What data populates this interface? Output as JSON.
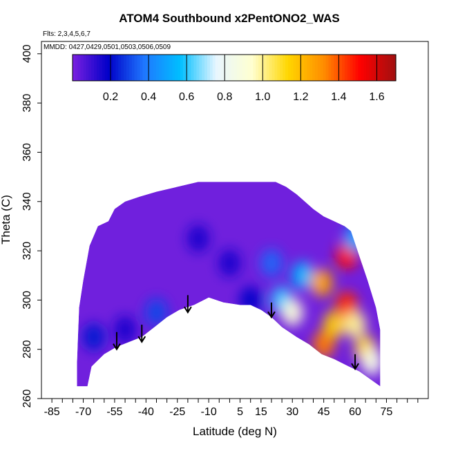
{
  "chart_data": {
    "type": "heatmap",
    "title": "ATOM4 Southbound x2PentONO2_WAS",
    "subtitle": "Flts: 2,3,4,5,6,7",
    "annotation": "MMDD: 0427,0429,0501,0503,0506,0509",
    "xlabel": "Latitude (deg N)",
    "ylabel": "Theta (C)",
    "xlim": [
      -90,
      95
    ],
    "ylim": [
      260,
      405
    ],
    "x_ticks": [
      -85,
      -80,
      -75,
      -70,
      -65,
      -60,
      -55,
      -50,
      -45,
      -40,
      -35,
      -30,
      -25,
      -20,
      -15,
      -10,
      -5,
      0,
      5,
      10,
      15,
      20,
      25,
      30,
      35,
      40,
      45,
      50,
      55,
      60,
      65,
      70,
      75,
      80,
      85,
      90
    ],
    "x_tick_labels": [
      "-85",
      "-70",
      "-55",
      "-40",
      "-25",
      "-10",
      "5",
      "15",
      "30",
      "45",
      "60",
      "75"
    ],
    "x_tick_label_values": [
      -85,
      -70,
      -55,
      -40,
      -25,
      -10,
      5,
      15,
      30,
      45,
      60,
      75
    ],
    "y_ticks": [
      260,
      280,
      300,
      320,
      340,
      360,
      380,
      400
    ],
    "y_tick_labels": [
      "260",
      "280",
      "300",
      "320",
      "340",
      "360",
      "380",
      "400"
    ],
    "grid": false,
    "colorbar": {
      "placement": "top-inside",
      "range": [
        0,
        1.7
      ],
      "tick_values": [
        0.2,
        0.4,
        0.6,
        0.8,
        1.0,
        1.2,
        1.4,
        1.6
      ],
      "tick_labels": [
        "0.2",
        "0.4",
        "0.6",
        "0.8",
        "1.0",
        "1.2",
        "1.4",
        "1.6"
      ],
      "colors": [
        "#7b1fe0",
        "#0000c8",
        "#1f78ff",
        "#00bfff",
        "#e8f6ff",
        "#ffffd0",
        "#ffd600",
        "#ff8c00",
        "#ff0000",
        "#a01010"
      ]
    },
    "coverage": {
      "top_boundary": [
        [
          -73,
          275
        ],
        [
          -72,
          297
        ],
        [
          -70,
          308
        ],
        [
          -67,
          322
        ],
        [
          -63,
          330
        ],
        [
          -58,
          332
        ],
        [
          -55,
          337
        ],
        [
          -50,
          340
        ],
        [
          -43,
          342
        ],
        [
          -35,
          344
        ],
        [
          -25,
          346
        ],
        [
          -15,
          348
        ],
        [
          -5,
          348
        ],
        [
          5,
          348
        ],
        [
          15,
          348
        ],
        [
          22,
          348
        ],
        [
          27,
          346
        ],
        [
          32,
          343
        ],
        [
          36,
          340
        ],
        [
          40,
          337
        ],
        [
          45,
          334
        ],
        [
          50,
          332
        ],
        [
          55,
          330
        ],
        [
          58,
          328
        ],
        [
          62,
          318
        ],
        [
          66,
          308
        ],
        [
          70,
          297
        ],
        [
          72,
          288
        ]
      ],
      "bottom_boundary": [
        [
          -73,
          265
        ],
        [
          -68,
          265
        ],
        [
          -66,
          273
        ],
        [
          -60,
          278
        ],
        [
          -54,
          281
        ],
        [
          -48,
          283
        ],
        [
          -42,
          285
        ],
        [
          -36,
          289
        ],
        [
          -30,
          293
        ],
        [
          -24,
          296
        ],
        [
          -17,
          298
        ],
        [
          -10,
          301
        ],
        [
          -3,
          299
        ],
        [
          5,
          298
        ],
        [
          10,
          298
        ],
        [
          15,
          296
        ],
        [
          20,
          293
        ],
        [
          25,
          289
        ],
        [
          32,
          285
        ],
        [
          38,
          282
        ],
        [
          44,
          278
        ],
        [
          50,
          276
        ],
        [
          57,
          273
        ],
        [
          62,
          271
        ],
        [
          67,
          268
        ],
        [
          72,
          265
        ]
      ]
    },
    "concentration_features": [
      {
        "x": -65,
        "y": 285,
        "value": 0.22
      },
      {
        "x": -50,
        "y": 288,
        "value": 0.15
      },
      {
        "x": -35,
        "y": 295,
        "value": 0.3
      },
      {
        "x": -15,
        "y": 325,
        "value": 0.15
      },
      {
        "x": 0,
        "y": 315,
        "value": 0.15
      },
      {
        "x": 10,
        "y": 300,
        "value": 0.18
      },
      {
        "x": 20,
        "y": 315,
        "value": 0.35
      },
      {
        "x": 25,
        "y": 300,
        "value": 0.6
      },
      {
        "x": 30,
        "y": 295,
        "value": 0.9
      },
      {
        "x": 35,
        "y": 310,
        "value": 0.55
      },
      {
        "x": 44,
        "y": 307,
        "value": 1.25
      },
      {
        "x": 45,
        "y": 282,
        "value": 1.35
      },
      {
        "x": 50,
        "y": 290,
        "value": 1.15
      },
      {
        "x": 56,
        "y": 318,
        "value": 1.5
      },
      {
        "x": 56,
        "y": 298,
        "value": 1.45
      },
      {
        "x": 60,
        "y": 290,
        "value": 1.0
      },
      {
        "x": 65,
        "y": 280,
        "value": 1.1
      },
      {
        "x": 68,
        "y": 275,
        "value": 0.85
      },
      {
        "x": 60,
        "y": 325,
        "value": 0.5
      }
    ],
    "arrows": [
      {
        "x": -54,
        "y_top": 287,
        "y_bottom": 280
      },
      {
        "x": -42,
        "y_top": 290,
        "y_bottom": 283
      },
      {
        "x": -20,
        "y_top": 302,
        "y_bottom": 295
      },
      {
        "x": 20,
        "y_top": 299,
        "y_bottom": 293
      },
      {
        "x": 60,
        "y_top": 278,
        "y_bottom": 272
      }
    ]
  }
}
